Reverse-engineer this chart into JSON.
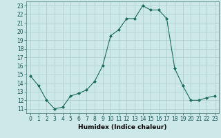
{
  "x": [
    0,
    1,
    2,
    3,
    4,
    5,
    6,
    7,
    8,
    9,
    10,
    11,
    12,
    13,
    14,
    15,
    16,
    17,
    18,
    19,
    20,
    21,
    22,
    23
  ],
  "y": [
    14.8,
    13.7,
    12.0,
    11.0,
    11.2,
    12.5,
    12.8,
    13.2,
    14.2,
    16.0,
    19.5,
    20.2,
    21.5,
    21.5,
    23.0,
    22.5,
    22.5,
    21.5,
    15.7,
    13.7,
    12.0,
    12.0,
    12.3,
    12.5
  ],
  "line_color": "#1a6b5a",
  "marker": "D",
  "marker_size": 2.0,
  "bg_color": "#cce8e8",
  "grid_color": "#aacccc",
  "xlabel": "Humidex (Indice chaleur)",
  "xlim": [
    -0.5,
    23.5
  ],
  "ylim": [
    10.5,
    23.5
  ],
  "yticks": [
    11,
    12,
    13,
    14,
    15,
    16,
    17,
    18,
    19,
    20,
    21,
    22,
    23
  ],
  "xticks": [
    0,
    1,
    2,
    3,
    4,
    5,
    6,
    7,
    8,
    9,
    10,
    11,
    12,
    13,
    14,
    15,
    16,
    17,
    18,
    19,
    20,
    21,
    22,
    23
  ],
  "label_fontsize": 6.5,
  "tick_fontsize": 5.5
}
